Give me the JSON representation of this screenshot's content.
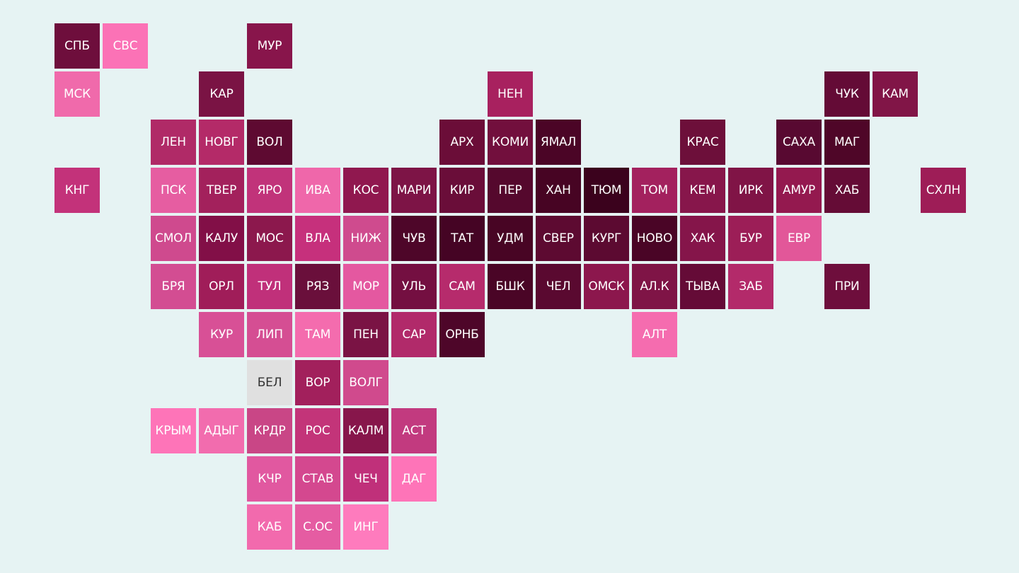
{
  "tiles": [
    {
      "label": "СПБ",
      "col": 0,
      "row": 0,
      "color": "#6e0e3c"
    },
    {
      "label": "СВС",
      "col": 1,
      "row": 0,
      "color": "#fb72b6"
    },
    {
      "label": "МУР",
      "col": 4,
      "row": 0,
      "color": "#88154b"
    },
    {
      "label": "МСК",
      "col": 0,
      "row": 1,
      "color": "#f06aab"
    },
    {
      "label": "КАР",
      "col": 3,
      "row": 1,
      "color": "#7a1344"
    },
    {
      "label": "НЕН",
      "col": 9,
      "row": 1,
      "color": "#a8215f"
    },
    {
      "label": "ЧУК",
      "col": 16,
      "row": 1,
      "color": "#640b36"
    },
    {
      "label": "КАМ",
      "col": 17,
      "row": 1,
      "color": "#811547"
    },
    {
      "label": "ЛЕН",
      "col": 2,
      "row": 2,
      "color": "#b02a67"
    },
    {
      "label": "НОВГ",
      "col": 3,
      "row": 2,
      "color": "#b42a68"
    },
    {
      "label": "ВОЛ",
      "col": 4,
      "row": 2,
      "color": "#5e0a31"
    },
    {
      "label": "АРХ",
      "col": 8,
      "row": 2,
      "color": "#6b0d38"
    },
    {
      "label": "КОМИ",
      "col": 9,
      "row": 2,
      "color": "#720f3d"
    },
    {
      "label": "ЯМАЛ",
      "col": 10,
      "row": 2,
      "color": "#4b0526"
    },
    {
      "label": "КРАС",
      "col": 13,
      "row": 2,
      "color": "#6d0f3a"
    },
    {
      "label": "САХА",
      "col": 15,
      "row": 2,
      "color": "#580931"
    },
    {
      "label": "МАГ",
      "col": 16,
      "row": 2,
      "color": "#4f0628"
    },
    {
      "label": "КНГ",
      "col": 0,
      "row": 3,
      "color": "#c3327a"
    },
    {
      "label": "ПСК",
      "col": 2,
      "row": 3,
      "color": "#e65da1"
    },
    {
      "label": "ТВЕР",
      "col": 3,
      "row": 3,
      "color": "#a3215c"
    },
    {
      "label": "ЯРО",
      "col": 4,
      "row": 3,
      "color": "#c1337a"
    },
    {
      "label": "ИВА",
      "col": 5,
      "row": 3,
      "color": "#ef67aa"
    },
    {
      "label": "КОС",
      "col": 6,
      "row": 3,
      "color": "#90184f"
    },
    {
      "label": "МАРИ",
      "col": 7,
      "row": 3,
      "color": "#7d1446"
    },
    {
      "label": "КИР",
      "col": 8,
      "row": 3,
      "color": "#6a0d39"
    },
    {
      "label": "ПЕР",
      "col": 9,
      "row": 3,
      "color": "#55082d"
    },
    {
      "label": "ХАН",
      "col": 10,
      "row": 3,
      "color": "#470423"
    },
    {
      "label": "ТЮМ",
      "col": 11,
      "row": 3,
      "color": "#3b021d"
    },
    {
      "label": "ТОМ",
      "col": 12,
      "row": 3,
      "color": "#a3215e"
    },
    {
      "label": "КЕМ",
      "col": 13,
      "row": 3,
      "color": "#87164b"
    },
    {
      "label": "ИРК",
      "col": 14,
      "row": 3,
      "color": "#801446"
    },
    {
      "label": "АМУР",
      "col": 15,
      "row": 3,
      "color": "#94194f"
    },
    {
      "label": "ХАБ",
      "col": 16,
      "row": 3,
      "color": "#650c36"
    },
    {
      "label": "СХЛН",
      "col": 18,
      "row": 3,
      "color": "#9e1d57"
    },
    {
      "label": "СМОЛ",
      "col": 2,
      "row": 4,
      "color": "#cf4a8e"
    },
    {
      "label": "КАЛУ",
      "col": 3,
      "row": 4,
      "color": "#820f47"
    },
    {
      "label": "МОС",
      "col": 4,
      "row": 4,
      "color": "#8c184d"
    },
    {
      "label": "ВЛА",
      "col": 5,
      "row": 4,
      "color": "#c6307c"
    },
    {
      "label": "НИЖ",
      "col": 6,
      "row": 4,
      "color": "#cf4b8e"
    },
    {
      "label": "ЧУВ",
      "col": 7,
      "row": 4,
      "color": "#4e0629"
    },
    {
      "label": "ТАТ",
      "col": 8,
      "row": 4,
      "color": "#450424"
    },
    {
      "label": "УДМ",
      "col": 9,
      "row": 4,
      "color": "#480524"
    },
    {
      "label": "СВЕР",
      "col": 10,
      "row": 4,
      "color": "#5d0a31"
    },
    {
      "label": "КУРГ",
      "col": 11,
      "row": 4,
      "color": "#5c0a31"
    },
    {
      "label": "НОВО",
      "col": 12,
      "row": 4,
      "color": "#4a0526"
    },
    {
      "label": "ХАК",
      "col": 13,
      "row": 4,
      "color": "#85154a"
    },
    {
      "label": "БУР",
      "col": 14,
      "row": 4,
      "color": "#9c1e57"
    },
    {
      "label": "ЕВР",
      "col": 15,
      "row": 4,
      "color": "#e25799"
    },
    {
      "label": "БРЯ",
      "col": 2,
      "row": 5,
      "color": "#d34d92"
    },
    {
      "label": "ОРЛ",
      "col": 3,
      "row": 5,
      "color": "#a01d59"
    },
    {
      "label": "ТУЛ",
      "col": 4,
      "row": 5,
      "color": "#c0307a"
    },
    {
      "label": "РЯЗ",
      "col": 5,
      "row": 5,
      "color": "#6a0f3b"
    },
    {
      "label": "МОР",
      "col": 6,
      "row": 5,
      "color": "#e458a0"
    },
    {
      "label": "УЛЬ",
      "col": 7,
      "row": 5,
      "color": "#740f41"
    },
    {
      "label": "САМ",
      "col": 8,
      "row": 5,
      "color": "#b62b6c"
    },
    {
      "label": "БШК",
      "col": 9,
      "row": 5,
      "color": "#4a0526"
    },
    {
      "label": "ЧЕЛ",
      "col": 10,
      "row": 5,
      "color": "#5a0930"
    },
    {
      "label": "ОМСК",
      "col": 11,
      "row": 5,
      "color": "#8c174d"
    },
    {
      "label": "АЛ.К",
      "col": 12,
      "row": 5,
      "color": "#7f1446"
    },
    {
      "label": "ТЫВА",
      "col": 13,
      "row": 5,
      "color": "#650b37"
    },
    {
      "label": "ЗАБ",
      "col": 14,
      "row": 5,
      "color": "#b32a6a"
    },
    {
      "label": "ПРИ",
      "col": 16,
      "row": 5,
      "color": "#6e0e3c"
    },
    {
      "label": "КУР",
      "col": 3,
      "row": 6,
      "color": "#d85096"
    },
    {
      "label": "ЛИП",
      "col": 4,
      "row": 6,
      "color": "#d54e93"
    },
    {
      "label": "ТАМ",
      "col": 5,
      "row": 6,
      "color": "#f46cae"
    },
    {
      "label": "ПЕН",
      "col": 6,
      "row": 6,
      "color": "#7a1344"
    },
    {
      "label": "САР",
      "col": 7,
      "row": 6,
      "color": "#b12a6a"
    },
    {
      "label": "ОРНБ",
      "col": 8,
      "row": 6,
      "color": "#4e0629"
    },
    {
      "label": "АЛТ",
      "col": 12,
      "row": 6,
      "color": "#f56caf"
    },
    {
      "label": "БЕЛ",
      "col": 4,
      "row": 7,
      "color": "#e0e0e0",
      "light": true
    },
    {
      "label": "ВОР",
      "col": 5,
      "row": 7,
      "color": "#a2205c"
    },
    {
      "label": "ВОЛГ",
      "col": 6,
      "row": 7,
      "color": "#d04a8d"
    },
    {
      "label": "КРЫМ",
      "col": 2,
      "row": 8,
      "color": "#fe74b8"
    },
    {
      "label": "АДЫГ",
      "col": 3,
      "row": 8,
      "color": "#f26cae"
    },
    {
      "label": "КРДР",
      "col": 4,
      "row": 8,
      "color": "#c94686"
    },
    {
      "label": "РОС",
      "col": 5,
      "row": 8,
      "color": "#c33479"
    },
    {
      "label": "КАЛМ",
      "col": 6,
      "row": 8,
      "color": "#87164b"
    },
    {
      "label": "АСТ",
      "col": 7,
      "row": 8,
      "color": "#c23a7f"
    },
    {
      "label": "КЧР",
      "col": 4,
      "row": 9,
      "color": "#e158a0"
    },
    {
      "label": "СТАВ",
      "col": 5,
      "row": 9,
      "color": "#d4488f"
    },
    {
      "label": "ЧЕЧ",
      "col": 6,
      "row": 9,
      "color": "#c0307a"
    },
    {
      "label": "ДАГ",
      "col": 7,
      "row": 9,
      "color": "#fe74b8"
    },
    {
      "label": "КАБ",
      "col": 4,
      "row": 10,
      "color": "#f26aad"
    },
    {
      "label": "С.ОС",
      "col": 5,
      "row": 10,
      "color": "#e55ca2"
    },
    {
      "label": "ИНГ",
      "col": 6,
      "row": 10,
      "color": "#fe7bbd"
    }
  ]
}
